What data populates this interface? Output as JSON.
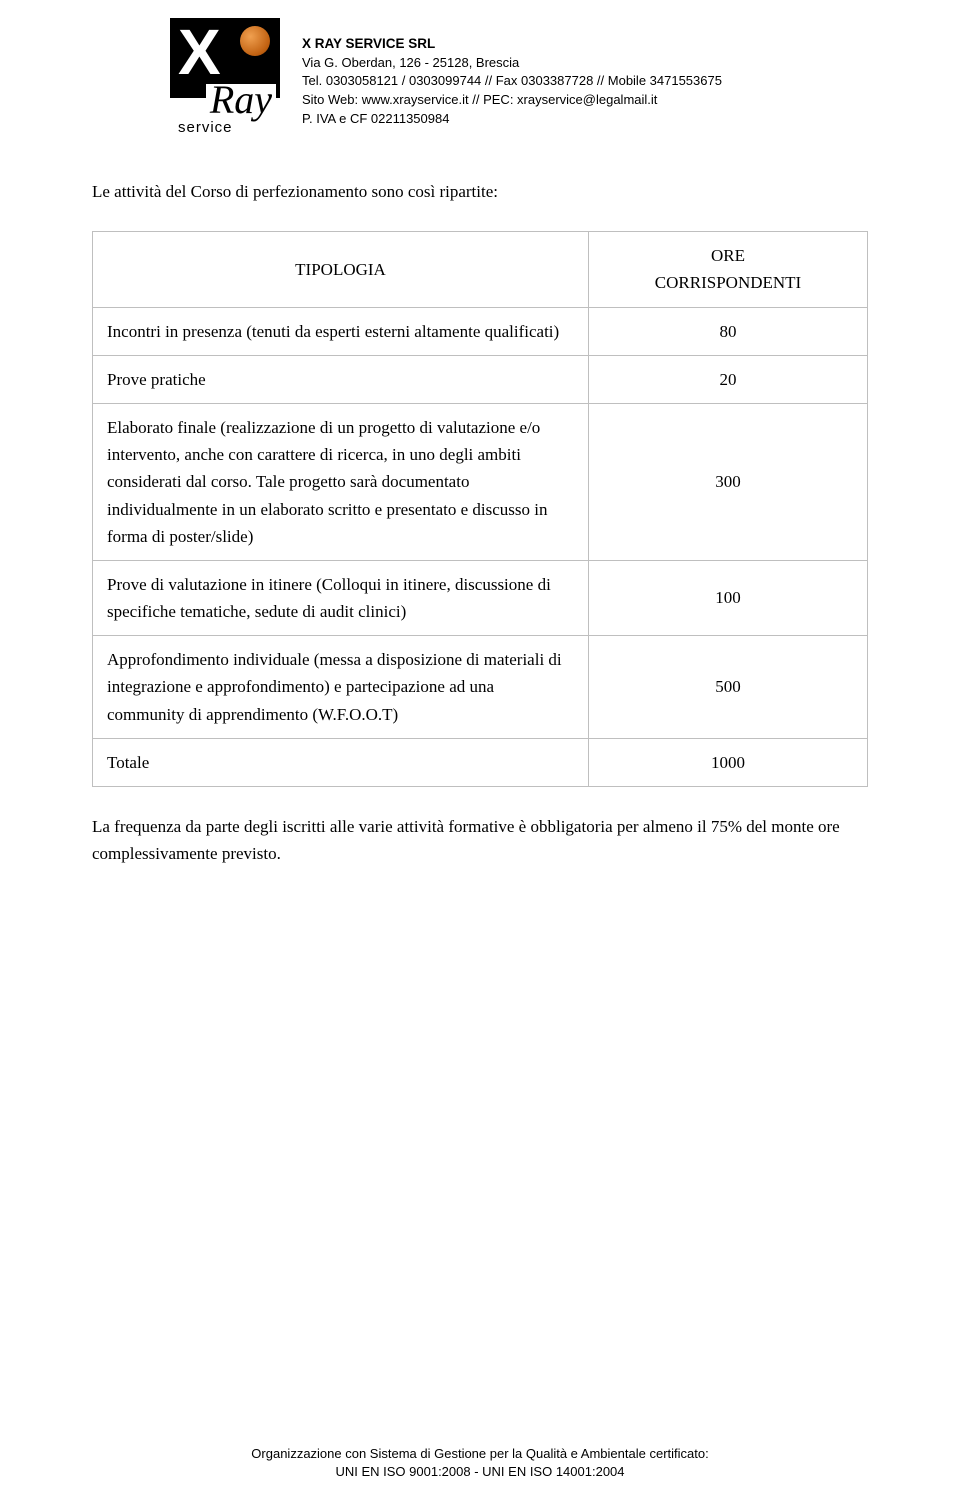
{
  "company": {
    "name": "X RAY SERVICE SRL",
    "address": "Via G. Oberdan, 126 - 25128, Brescia",
    "contacts": "Tel. 0303058121 / 0303099744 // Fax 0303387728 // Mobile 3471553675",
    "web": "Sito Web: www.xrayservice.it // PEC: xrayservice@legalmail.it",
    "vat": "P. IVA e CF 02211350984"
  },
  "logo": {
    "x": "X",
    "ray": "Ray",
    "service": "service"
  },
  "intro": "Le attività del Corso di perfezionamento sono così ripartite:",
  "table": {
    "header": {
      "col1": "TIPOLOGIA",
      "col2_line1": "ORE",
      "col2_line2": "CORRISPONDENTI"
    },
    "rows": [
      {
        "label": "Incontri in presenza (tenuti da esperti esterni altamente qualificati)",
        "value": "80"
      },
      {
        "label": "Prove pratiche",
        "value": "20"
      },
      {
        "label": "Elaborato finale (realizzazione di un progetto di valutazione e/o intervento, anche con carattere di ricerca, in uno degli ambiti considerati dal corso. Tale progetto sarà documentato individualmente in un elaborato scritto e presentato e discusso in forma di poster/slide)",
        "value": "300"
      },
      {
        "label": "Prove di valutazione in itinere (Colloqui in itinere, discussione di specifiche tematiche, sedute di audit clinici)",
        "value": "100"
      },
      {
        "label": "Approfondimento individuale (messa a disposizione di materiali di integrazione e approfondimento) e partecipazione ad una community di apprendimento (W.F.O.O.T)",
        "value": "500"
      },
      {
        "label": "Totale",
        "value": "1000"
      }
    ]
  },
  "closing": "La frequenza da parte degli iscritti alle varie attività formative è obbligatoria per almeno il 75% del monte ore complessivamente previsto.",
  "footer": {
    "line1": "Organizzazione con Sistema di Gestione per la Qualità e Ambientale certificato:",
    "line2": "UNI EN ISO 9001:2008 - UNI EN ISO 14001:2004"
  },
  "colors": {
    "text": "#000000",
    "background": "#ffffff",
    "border": "#bfbfbf"
  }
}
